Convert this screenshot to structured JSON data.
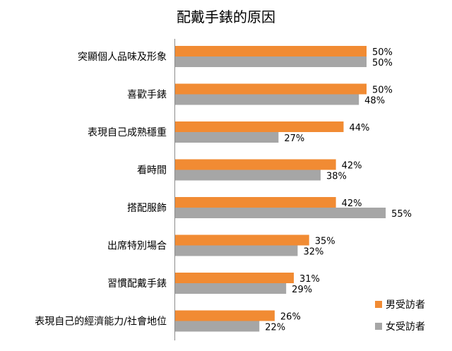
{
  "chart_data": {
    "type": "bar",
    "orientation": "horizontal",
    "title": "配戴手錶的原因",
    "categories": [
      "突顯個人品味及形象",
      "喜歡手錶",
      "表現自己成熟穩重",
      "看時間",
      "搭配服飾",
      "出席特別場合",
      "習慣配戴手錶",
      "表現自己的經濟能力/社會地位"
    ],
    "series": [
      {
        "name": "男受訪者",
        "color": "#F18B33",
        "values": [
          50,
          50,
          44,
          42,
          42,
          35,
          31,
          26
        ]
      },
      {
        "name": "女受訪者",
        "color": "#A6A6A6",
        "values": [
          50,
          48,
          27,
          38,
          55,
          32,
          29,
          22
        ]
      }
    ],
    "value_suffix": "%",
    "xlim": [
      0,
      62
    ],
    "grid": false,
    "legend": "bottom-right"
  }
}
